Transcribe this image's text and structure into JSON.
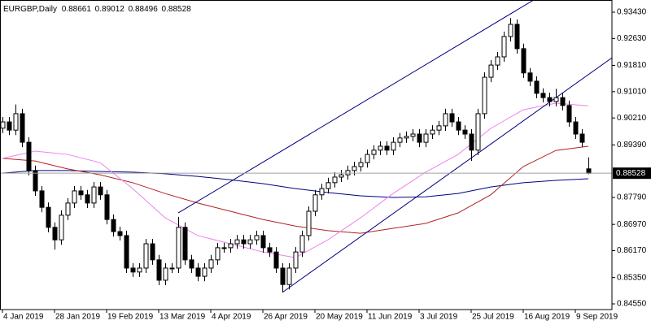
{
  "chart_data": {
    "type": "candlestick",
    "title": "EURGBP,Daily",
    "categories": [
      "4 Jan 2019",
      null,
      null,
      null,
      null,
      null,
      null,
      null,
      "28 Jan 2019",
      null,
      null,
      null,
      null,
      null,
      null,
      null,
      "19 Feb 2019",
      null,
      null,
      null,
      null,
      null,
      null,
      null,
      "13 Mar 2019",
      null,
      null,
      null,
      null,
      null,
      null,
      null,
      "4 Apr 2019",
      null,
      null,
      null,
      null,
      null,
      null,
      null,
      "26 Apr 2019",
      null,
      null,
      null,
      null,
      null,
      null,
      null,
      "20 May 2019",
      null,
      null,
      null,
      null,
      null,
      null,
      null,
      "11 Jun 2019",
      null,
      null,
      null,
      null,
      null,
      null,
      null,
      "3 Jul 2019",
      null,
      null,
      null,
      null,
      null,
      null,
      null,
      "25 Jul 2019",
      null,
      null,
      null,
      null,
      null,
      null,
      null,
      "16 Aug 2019",
      null,
      null,
      null,
      null,
      null,
      null,
      null,
      "9 Sep 2019",
      null,
      null
    ],
    "open": [
      0.899,
      0.9009,
      0.8984,
      0.9034,
      0.8947,
      0.8861,
      0.8799,
      0.8749,
      0.8688,
      0.865,
      0.8725,
      0.8762,
      0.8799,
      0.8787,
      0.8762,
      0.8811,
      0.8787,
      0.8712,
      0.8675,
      0.8663,
      0.8564,
      0.8552,
      0.8564,
      0.8638,
      0.8589,
      0.8527,
      0.8564,
      0.8564,
      0.8688,
      0.8589,
      0.8564,
      0.8539,
      0.8564,
      0.8589,
      0.8626,
      0.8626,
      0.8638,
      0.865,
      0.8638,
      0.865,
      0.8663,
      0.8626,
      0.8613,
      0.8564,
      0.8514,
      0.8564,
      0.8613,
      0.8663,
      0.8737,
      0.8787,
      0.8806,
      0.8824,
      0.8841,
      0.8848,
      0.8861,
      0.8873,
      0.8885,
      0.891,
      0.8923,
      0.8935,
      0.8923,
      0.8947,
      0.896,
      0.8965,
      0.8972,
      0.8947,
      0.8972,
      0.8984,
      0.8997,
      0.9034,
      0.9009,
      0.8984,
      0.8972,
      0.8923,
      0.9034,
      0.9145,
      0.9182,
      0.9207,
      0.9269,
      0.9306,
      0.9232,
      0.9158,
      0.9133,
      0.9096,
      0.9083,
      0.9071,
      0.9083,
      0.9059,
      0.9009,
      0.8972,
      0.88661
    ],
    "high": [
      0.9024,
      0.9024,
      0.9062,
      0.9049,
      0.8962,
      0.8876,
      0.8814,
      0.8764,
      0.8703,
      0.874,
      0.8777,
      0.8814,
      0.8814,
      0.8802,
      0.8826,
      0.8826,
      0.8802,
      0.8727,
      0.869,
      0.8678,
      0.8579,
      0.8579,
      0.8653,
      0.8653,
      0.8604,
      0.8579,
      0.8579,
      0.872,
      0.8703,
      0.8604,
      0.8579,
      0.8579,
      0.8604,
      0.8641,
      0.8641,
      0.8653,
      0.8665,
      0.8665,
      0.8665,
      0.8678,
      0.8678,
      0.8641,
      0.8628,
      0.8579,
      0.8579,
      0.8628,
      0.8678,
      0.8752,
      0.8802,
      0.8821,
      0.8839,
      0.8856,
      0.8863,
      0.8876,
      0.8888,
      0.89,
      0.8925,
      0.8938,
      0.895,
      0.895,
      0.8962,
      0.8975,
      0.898,
      0.8987,
      0.8987,
      0.8987,
      0.8999,
      0.9012,
      0.9049,
      0.9049,
      0.9024,
      0.8999,
      0.8987,
      0.9049,
      0.916,
      0.9197,
      0.9222,
      0.9284,
      0.9325,
      0.9321,
      0.9247,
      0.9173,
      0.9148,
      0.9111,
      0.9098,
      0.911,
      0.9098,
      0.9074,
      0.9024,
      0.8987,
      0.89012
    ],
    "low": [
      0.8975,
      0.8969,
      0.8969,
      0.8932,
      0.8846,
      0.8784,
      0.8734,
      0.8673,
      0.862,
      0.8635,
      0.871,
      0.8747,
      0.8772,
      0.8747,
      0.8747,
      0.8772,
      0.8697,
      0.866,
      0.8648,
      0.8549,
      0.8537,
      0.8537,
      0.8549,
      0.8574,
      0.8512,
      0.8512,
      0.8549,
      0.8549,
      0.8574,
      0.8549,
      0.8524,
      0.8524,
      0.8549,
      0.8574,
      0.8611,
      0.8611,
      0.8623,
      0.8623,
      0.8623,
      0.8635,
      0.8611,
      0.8598,
      0.8549,
      0.849,
      0.8499,
      0.8549,
      0.8598,
      0.8648,
      0.8722,
      0.8772,
      0.8791,
      0.8809,
      0.8826,
      0.8833,
      0.8846,
      0.8858,
      0.887,
      0.8895,
      0.8908,
      0.8908,
      0.8908,
      0.8932,
      0.8945,
      0.895,
      0.8932,
      0.8932,
      0.8957,
      0.8969,
      0.8982,
      0.8994,
      0.8969,
      0.8957,
      0.889,
      0.8908,
      0.9019,
      0.913,
      0.9167,
      0.9192,
      0.9254,
      0.9217,
      0.9143,
      0.9118,
      0.9081,
      0.9068,
      0.9056,
      0.9056,
      0.9044,
      0.8994,
      0.8957,
      0.8932,
      0.88496
    ],
    "close": [
      0.9009,
      0.8984,
      0.9034,
      0.8947,
      0.8861,
      0.8799,
      0.8749,
      0.8688,
      0.865,
      0.8725,
      0.8762,
      0.8799,
      0.8787,
      0.8762,
      0.8811,
      0.8787,
      0.8712,
      0.8675,
      0.8663,
      0.8564,
      0.8552,
      0.8564,
      0.8638,
      0.8589,
      0.8527,
      0.8564,
      0.8564,
      0.8688,
      0.8589,
      0.8564,
      0.8539,
      0.8564,
      0.8589,
      0.8626,
      0.8626,
      0.8638,
      0.865,
      0.8638,
      0.865,
      0.8663,
      0.8626,
      0.8613,
      0.8564,
      0.8514,
      0.8564,
      0.8613,
      0.8663,
      0.8737,
      0.8787,
      0.8806,
      0.8824,
      0.8841,
      0.8848,
      0.8861,
      0.8873,
      0.8885,
      0.891,
      0.8923,
      0.8935,
      0.8923,
      0.8947,
      0.896,
      0.8965,
      0.8972,
      0.8947,
      0.8972,
      0.8984,
      0.8997,
      0.9034,
      0.9009,
      0.8984,
      0.8972,
      0.8923,
      0.9034,
      0.9145,
      0.9182,
      0.9207,
      0.9269,
      0.9306,
      0.9232,
      0.9158,
      0.9133,
      0.9096,
      0.9083,
      0.9071,
      0.9083,
      0.9059,
      0.9009,
      0.8972,
      0.8947,
      0.88528
    ],
    "up_color": "#ffffff",
    "down_color": "#000000",
    "outline_color": "#000000",
    "ylim": [
      0.84402,
      0.93801
    ],
    "yticks": [
      {
        "value": 0.9343,
        "label": "0.93430"
      },
      {
        "value": 0.9263,
        "label": "0.92630"
      },
      {
        "value": 0.9181,
        "label": "0.91810"
      },
      {
        "value": 0.9101,
        "label": "0.91010"
      },
      {
        "value": 0.9021,
        "label": "0.90210"
      },
      {
        "value": 0.8939,
        "label": "0.89390"
      },
      {
        "value": 0.8779,
        "label": "0.87790"
      },
      {
        "value": 0.8697,
        "label": "0.86970"
      },
      {
        "value": 0.8617,
        "label": "0.86170"
      },
      {
        "value": 0.8535,
        "label": "0.85350"
      },
      {
        "value": 0.8455,
        "label": "0.84550"
      }
    ],
    "moving_averages": [
      {
        "color": "#000080",
        "x": [
          0,
          5,
          10,
          15,
          20,
          25,
          30,
          35,
          40,
          45,
          50,
          55,
          60,
          65,
          70,
          75,
          80,
          85,
          90
        ],
        "values": [
          0.8853,
          0.8861,
          0.8861,
          0.8858,
          0.8856,
          0.8851,
          0.8843,
          0.8833,
          0.8821,
          0.8806,
          0.8794,
          0.8784,
          0.8779,
          0.8781,
          0.8791,
          0.8811,
          0.8824,
          0.8831,
          0.8836
        ]
      },
      {
        "color": "#b22222",
        "x": [
          0,
          5,
          10,
          15,
          20,
          25,
          30,
          35,
          40,
          45,
          50,
          55,
          60,
          65,
          70,
          75,
          80,
          85,
          90
        ],
        "values": [
          0.8898,
          0.889,
          0.8866,
          0.8848,
          0.8824,
          0.8791,
          0.8762,
          0.8737,
          0.8712,
          0.8692,
          0.8678,
          0.867,
          0.8685,
          0.87,
          0.8732,
          0.8787,
          0.8873,
          0.8922,
          0.8935
        ]
      },
      {
        "color": "#ee82ee",
        "x": [
          0,
          5,
          10,
          15,
          20,
          25,
          30,
          35,
          40,
          45,
          50,
          55,
          60,
          65,
          70,
          75,
          80,
          85,
          90
        ],
        "values": [
          0.8898,
          0.892,
          0.891,
          0.8885,
          0.8806,
          0.8717,
          0.8663,
          0.8638,
          0.8613,
          0.8596,
          0.865,
          0.8717,
          0.8791,
          0.8856,
          0.891,
          0.8989,
          0.9046,
          0.9066,
          0.9058
        ]
      }
    ],
    "trendlines": [
      {
        "color": "#000080",
        "x": [
          27,
          81
        ],
        "values": [
          0.8732,
          0.9373
        ]
      },
      {
        "color": "#000080",
        "x": [
          43,
          90
        ],
        "values": [
          0.849,
          0.9153
        ]
      }
    ],
    "price_line_color": "#a0a0a0"
  }
}
